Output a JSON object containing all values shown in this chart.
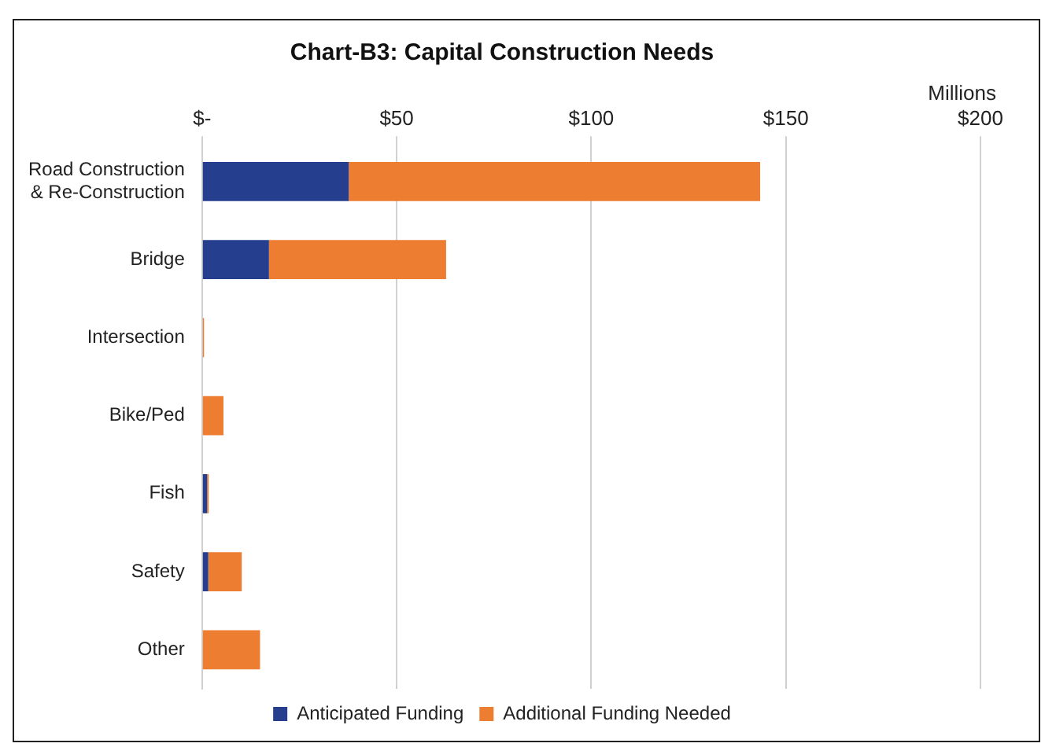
{
  "chart_data": {
    "type": "bar",
    "orientation": "horizontal",
    "stacked": true,
    "title": "Chart-B3: Capital Construction Needs",
    "xlabel": "Millions",
    "categories": [
      "Road Construction & Re-Construction",
      "Bridge",
      "Intersection",
      "Bike/Ped",
      "Fish",
      "Safety",
      "Other"
    ],
    "series": [
      {
        "name": "Anticipated Funding",
        "color": "#253f8e",
        "values": [
          37.7,
          17.2,
          0,
          0,
          1.3,
          1.6,
          0
        ]
      },
      {
        "name": "Additional Funding Needed",
        "color": "#ed7d31",
        "values": [
          105.7,
          45.5,
          0.5,
          5.5,
          0.4,
          8.6,
          14.9
        ]
      }
    ],
    "xlim": [
      0,
      200
    ],
    "xticks": [
      {
        "value": 0,
        "label": "$-"
      },
      {
        "value": 50,
        "label": "$50"
      },
      {
        "value": 100,
        "label": "$100"
      },
      {
        "value": 150,
        "label": "$150"
      },
      {
        "value": 200,
        "label": "$200"
      }
    ],
    "grid": "x",
    "legend": "bottom"
  }
}
